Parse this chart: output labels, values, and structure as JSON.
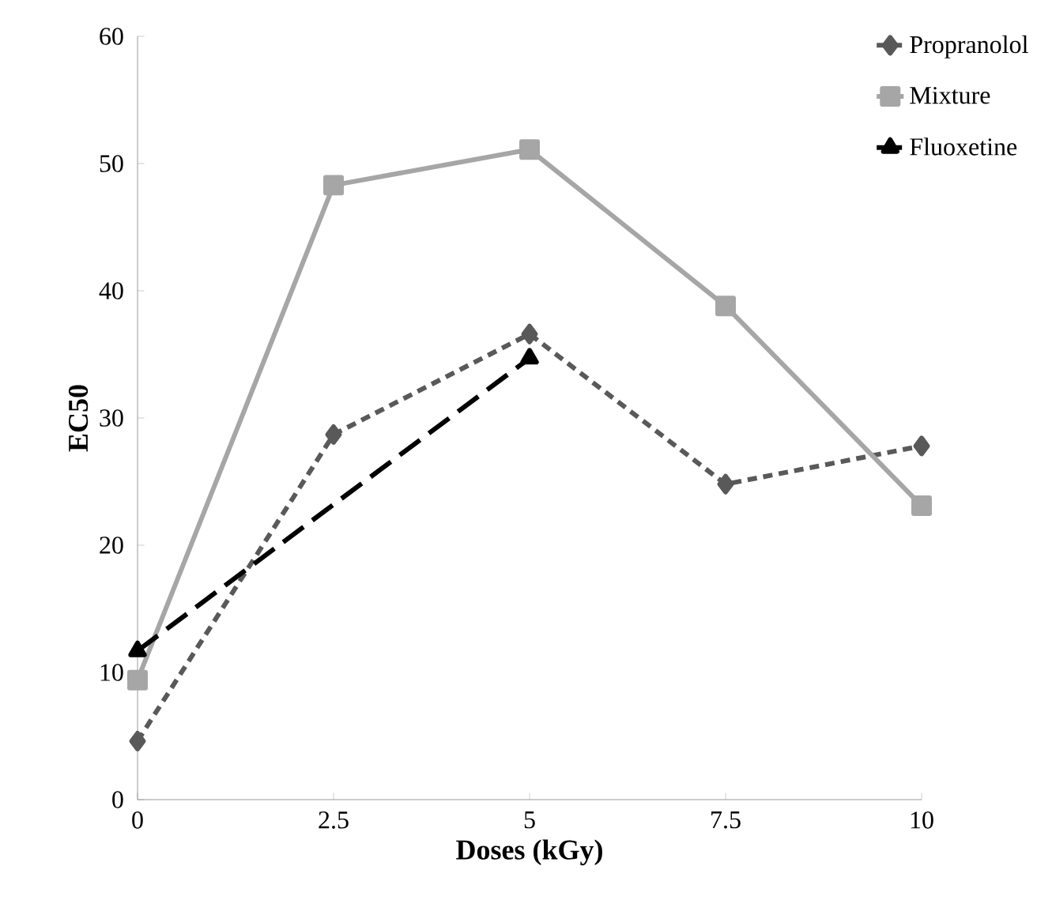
{
  "chart_data": {
    "type": "line",
    "xlabel": "Doses (kGy)",
    "ylabel": "EC50",
    "xlim": [
      0,
      10
    ],
    "xticks": [
      0,
      2.5,
      5,
      7.5,
      10
    ],
    "ylim": [
      0,
      60
    ],
    "yticks": [
      0,
      10,
      20,
      30,
      40,
      50,
      60
    ],
    "grid": false,
    "legend": "top right",
    "series": [
      {
        "name": "Propranolol",
        "color": "#595959",
        "marker": "diamond",
        "line_style": "dashed",
        "x": [
          0,
          2.5,
          5,
          7.5,
          10
        ],
        "values": [
          4.6,
          28.7,
          36.6,
          24.8,
          27.8
        ]
      },
      {
        "name": "Mixture",
        "color": "#a6a6a6",
        "marker": "square",
        "line_style": "solid",
        "x": [
          0,
          2.5,
          5,
          7.5,
          10
        ],
        "values": [
          9.4,
          48.3,
          51.1,
          38.8,
          23.1
        ]
      },
      {
        "name": "Fluoxetine",
        "color": "#000000",
        "marker": "triangle",
        "line_style": "loosely dashed",
        "x": [
          0,
          5
        ],
        "values": [
          11.7,
          34.7
        ]
      }
    ]
  }
}
